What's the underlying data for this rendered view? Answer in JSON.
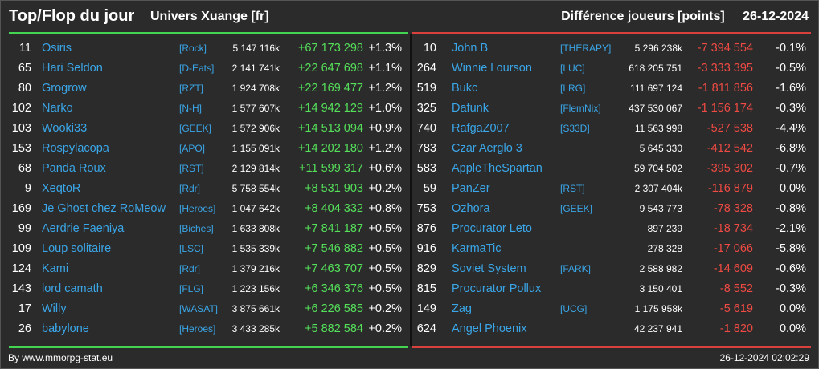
{
  "header": {
    "title": "Top/Flop du jour",
    "subtitle": "Univers Xuange [fr]",
    "metric": "Différence joueurs [points]",
    "date": "26-12-2024"
  },
  "colors": {
    "up": "#55e05a",
    "down": "#ef4a43",
    "link": "#3aa6e8",
    "background": "#2b2b2b"
  },
  "top": [
    {
      "rank": "11",
      "name": "Osiris",
      "ally": "[Rock]",
      "points": "5 147 116k",
      "diff": "+67 173 298",
      "pct": "+1.3%"
    },
    {
      "rank": "65",
      "name": "Hari Seldon",
      "ally": "[D-Eats]",
      "points": "2 141 741k",
      "diff": "+22 647 698",
      "pct": "+1.1%"
    },
    {
      "rank": "80",
      "name": "Grogrow",
      "ally": "[RZT]",
      "points": "1 924 708k",
      "diff": "+22 169 477",
      "pct": "+1.2%"
    },
    {
      "rank": "102",
      "name": "Narko",
      "ally": "[N-H]",
      "points": "1 577 607k",
      "diff": "+14 942 129",
      "pct": "+1.0%"
    },
    {
      "rank": "103",
      "name": "Wooki33",
      "ally": "[GEEK]",
      "points": "1 572 906k",
      "diff": "+14 513 094",
      "pct": "+0.9%"
    },
    {
      "rank": "153",
      "name": "Rospylacopa",
      "ally": "[APO]",
      "points": "1 155 091k",
      "diff": "+14 202 180",
      "pct": "+1.2%"
    },
    {
      "rank": "68",
      "name": "Panda Roux",
      "ally": "[RST]",
      "points": "2 129 814k",
      "diff": "+11 599 317",
      "pct": "+0.6%"
    },
    {
      "rank": "9",
      "name": "XeqtoR",
      "ally": "[Rdr]",
      "points": "5 758 554k",
      "diff": "+8 531 903",
      "pct": "+0.2%"
    },
    {
      "rank": "169",
      "name": "Je Ghost chez RoMeow",
      "ally": "[Heroes]",
      "points": "1 047 642k",
      "diff": "+8 404 332",
      "pct": "+0.8%"
    },
    {
      "rank": "99",
      "name": "Aerdrie Faeniya",
      "ally": "[Biches]",
      "points": "1 633 808k",
      "diff": "+7 841 187",
      "pct": "+0.5%"
    },
    {
      "rank": "109",
      "name": "Loup solitaire",
      "ally": "[LSC]",
      "points": "1 535 339k",
      "diff": "+7 546 882",
      "pct": "+0.5%"
    },
    {
      "rank": "124",
      "name": "Kami",
      "ally": "[Rdr]",
      "points": "1 379 216k",
      "diff": "+7 463 707",
      "pct": "+0.5%"
    },
    {
      "rank": "143",
      "name": "lord camath",
      "ally": "[FLG]",
      "points": "1 223 156k",
      "diff": "+6 346 376",
      "pct": "+0.5%"
    },
    {
      "rank": "17",
      "name": "Willy",
      "ally": "[WASAT]",
      "points": "3 875 661k",
      "diff": "+6 226 585",
      "pct": "+0.2%"
    },
    {
      "rank": "26",
      "name": "babylone",
      "ally": "[Heroes]",
      "points": "3 433 285k",
      "diff": "+5 882 584",
      "pct": "+0.2%"
    }
  ],
  "flop": [
    {
      "rank": "10",
      "name": "John B",
      "ally": "[THERAPY]",
      "points": "5 296 238k",
      "diff": "-7 394 554",
      "pct": "-0.1%"
    },
    {
      "rank": "264",
      "name": "Winnie l ourson",
      "ally": "[LUC]",
      "points": "618 205 751",
      "diff": "-3 333 395",
      "pct": "-0.5%"
    },
    {
      "rank": "519",
      "name": "Bukc",
      "ally": "[LRG]",
      "points": "111 697 124",
      "diff": "-1 811 856",
      "pct": "-1.6%"
    },
    {
      "rank": "325",
      "name": "Dafunk",
      "ally": "[FlemNix]",
      "points": "437 530 067",
      "diff": "-1 156 174",
      "pct": "-0.3%"
    },
    {
      "rank": "740",
      "name": "RafgaZ007",
      "ally": "[S33D]",
      "points": "11 563 998",
      "diff": "-527 538",
      "pct": "-4.4%"
    },
    {
      "rank": "783",
      "name": "Czar Aerglo 3",
      "ally": "",
      "points": "5 645 330",
      "diff": "-412 542",
      "pct": "-6.8%"
    },
    {
      "rank": "583",
      "name": "AppleTheSpartan",
      "ally": "",
      "points": "59 704 502",
      "diff": "-395 302",
      "pct": "-0.7%"
    },
    {
      "rank": "59",
      "name": "PanZer",
      "ally": "[RST]",
      "points": "2 307 404k",
      "diff": "-116 879",
      "pct": "0.0%"
    },
    {
      "rank": "753",
      "name": "Ozhora",
      "ally": "[GEEK]",
      "points": "9 543 773",
      "diff": "-78 328",
      "pct": "-0.8%"
    },
    {
      "rank": "876",
      "name": "Procurator Leto",
      "ally": "",
      "points": "897 239",
      "diff": "-18 734",
      "pct": "-2.1%"
    },
    {
      "rank": "916",
      "name": "KarmaTic",
      "ally": "",
      "points": "278 328",
      "diff": "-17 066",
      "pct": "-5.8%"
    },
    {
      "rank": "829",
      "name": "Soviet System",
      "ally": "[FARK]",
      "points": "2 588 982",
      "diff": "-14 609",
      "pct": "-0.6%"
    },
    {
      "rank": "815",
      "name": "Procurator Pollux",
      "ally": "",
      "points": "3 150 401",
      "diff": "-8 552",
      "pct": "-0.3%"
    },
    {
      "rank": "149",
      "name": "Zag",
      "ally": "[UCG]",
      "points": "1 175 958k",
      "diff": "-5 619",
      "pct": "0.0%"
    },
    {
      "rank": "624",
      "name": "Angel Phoenix",
      "ally": "",
      "points": "42 237 941",
      "diff": "-1 820",
      "pct": "0.0%"
    }
  ],
  "footer": {
    "credit": "By www.mmorpg-stat.eu",
    "timestamp": "26-12-2024 02:02:29"
  }
}
